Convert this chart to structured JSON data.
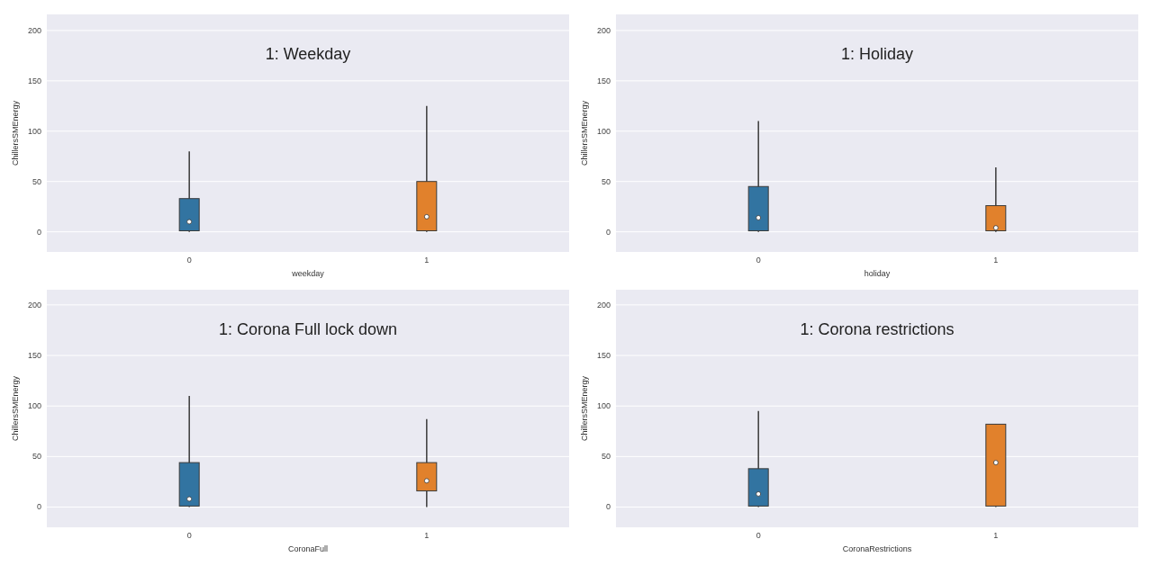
{
  "chart_data": [
    {
      "type": "box",
      "xlabel": "weekday",
      "ylabel": "ChillersSMEnergy",
      "categories": [
        "0",
        "1"
      ],
      "colors": [
        "#3274a1",
        "#e1812c"
      ],
      "boxes": [
        {
          "low": 0,
          "q1": 1,
          "median": 10,
          "q3": 33,
          "high": 80
        },
        {
          "low": 0,
          "q1": 1,
          "median": 15,
          "q3": 50,
          "high": 125
        }
      ],
      "ylim": [
        -20,
        216
      ],
      "yticks": [
        0,
        50,
        100,
        150,
        200
      ],
      "grid": "y",
      "annotations": [
        "1: Weekday"
      ]
    },
    {
      "type": "box",
      "xlabel": "holiday",
      "ylabel": "ChillersSMEnergy",
      "categories": [
        "0",
        "1"
      ],
      "colors": [
        "#3274a1",
        "#e1812c"
      ],
      "boxes": [
        {
          "low": 0,
          "q1": 1,
          "median": 14,
          "q3": 45,
          "high": 110
        },
        {
          "low": 0,
          "q1": 1,
          "median": 4,
          "q3": 26,
          "high": 64
        }
      ],
      "ylim": [
        -20,
        216
      ],
      "yticks": [
        0,
        50,
        100,
        150,
        200
      ],
      "grid": "y",
      "annotations": [
        "1: Holiday"
      ]
    },
    {
      "type": "box",
      "xlabel": "CoronaFull",
      "ylabel": "ChillersSMEnergy",
      "categories": [
        "0",
        "1"
      ],
      "colors": [
        "#3274a1",
        "#e1812c"
      ],
      "boxes": [
        {
          "low": 0,
          "q1": 1,
          "median": 8,
          "q3": 44,
          "high": 110
        },
        {
          "low": 0,
          "q1": 16,
          "median": 26,
          "q3": 44,
          "high": 87
        }
      ],
      "ylim": [
        -20,
        215
      ],
      "yticks": [
        0,
        50,
        100,
        150,
        200
      ],
      "grid": "y",
      "annotations": [
        "1: Corona Full lock down"
      ]
    },
    {
      "type": "box",
      "xlabel": "CoronaRestrictions",
      "ylabel": "ChillersSMEnergy",
      "categories": [
        "0",
        "1"
      ],
      "colors": [
        "#3274a1",
        "#e1812c"
      ],
      "boxes": [
        {
          "low": 0,
          "q1": 1,
          "median": 13,
          "q3": 38,
          "high": 95
        },
        {
          "low": 0,
          "q1": 1,
          "median": 44,
          "q3": 82,
          "high": 82
        }
      ],
      "ylim": [
        -20,
        215
      ],
      "yticks": [
        0,
        50,
        100,
        150,
        200
      ],
      "grid": "y",
      "annotations": [
        "1: Corona restrictions"
      ]
    }
  ]
}
